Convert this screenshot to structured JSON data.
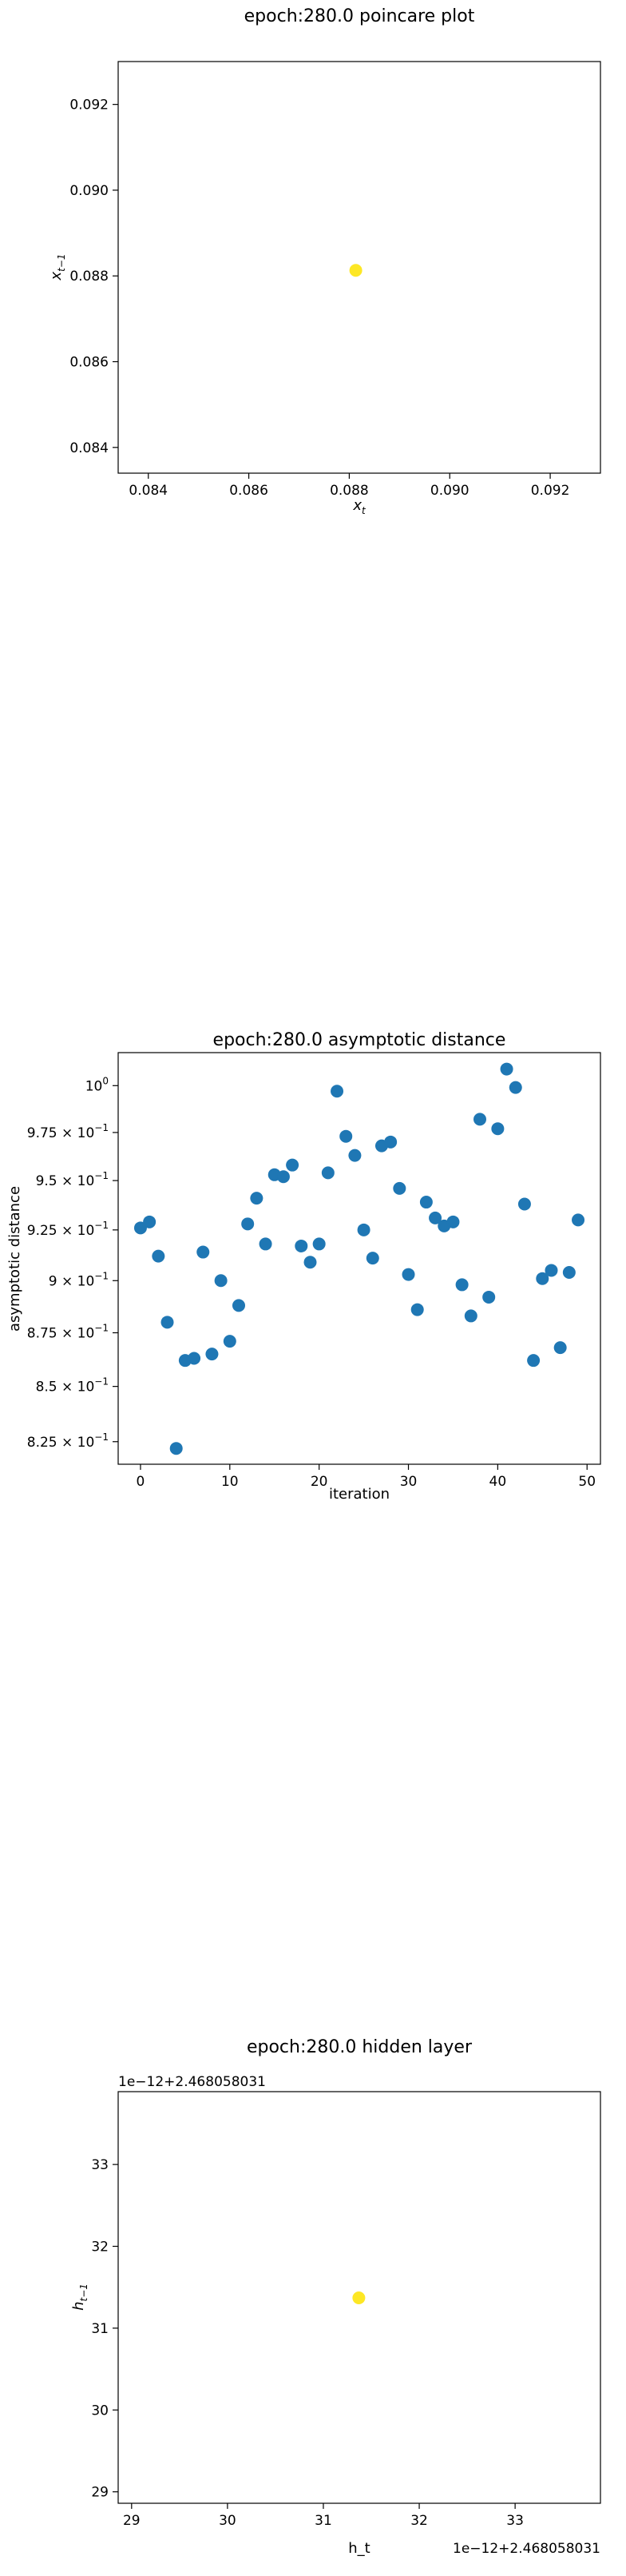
{
  "chart_data": [
    {
      "type": "scatter",
      "title": "epoch:280.0 poincare plot",
      "xlabel": "x_t",
      "ylabel": "x_{t-1}",
      "xlim": [
        0.0834,
        0.093
      ],
      "ylim": [
        0.0834,
        0.093
      ],
      "xticks": [
        0.084,
        0.086,
        0.088,
        0.09,
        0.092
      ],
      "xtick_labels": [
        "0.084",
        "0.086",
        "0.088",
        "0.090",
        "0.092"
      ],
      "yticks": [
        0.084,
        0.086,
        0.088,
        0.09,
        0.092
      ],
      "ytick_labels": [
        "0.084",
        "0.086",
        "0.088",
        "0.090",
        "0.092"
      ],
      "grid": false,
      "marker_color": "#fde725",
      "points": [
        {
          "x": 0.08813,
          "y": 0.08813
        }
      ]
    },
    {
      "type": "scatter",
      "title": "epoch:280.0 asymptotic distance",
      "xlabel": "iteration",
      "ylabel": "asymptotic distance",
      "xlim": [
        -2.5,
        51.5
      ],
      "ylim": [
        0.815,
        1.018
      ],
      "y_scale": "log",
      "xticks": [
        0,
        10,
        20,
        30,
        40,
        50
      ],
      "xtick_labels": [
        "0",
        "10",
        "20",
        "30",
        "40",
        "50"
      ],
      "yticks": [
        0.825,
        0.85,
        0.875,
        0.9,
        0.925,
        0.95,
        0.975,
        1.0
      ],
      "ytick_labels": [
        [
          "8.25 × 10",
          "−1"
        ],
        [
          "8.5 × 10",
          "−1"
        ],
        [
          "8.75 × 10",
          "−1"
        ],
        [
          "9 × 10",
          "−1"
        ],
        [
          "9.25 × 10",
          "−1"
        ],
        [
          "9.5 × 10",
          "−1"
        ],
        [
          "9.75 × 10",
          "−1"
        ],
        [
          "10",
          "0"
        ]
      ],
      "grid": false,
      "marker_color": "#1f77b4",
      "x": [
        0,
        1,
        2,
        3,
        4,
        5,
        6,
        7,
        8,
        9,
        10,
        11,
        12,
        13,
        14,
        15,
        16,
        17,
        18,
        19,
        20,
        21,
        22,
        23,
        24,
        25,
        26,
        27,
        28,
        29,
        30,
        31,
        32,
        33,
        34,
        35,
        36,
        37,
        38,
        39,
        40,
        41,
        42,
        43,
        44,
        45,
        46,
        47,
        48,
        49
      ],
      "y": [
        0.926,
        0.929,
        0.912,
        0.88,
        0.822,
        0.862,
        0.863,
        0.914,
        0.865,
        0.9,
        0.871,
        0.888,
        0.928,
        0.941,
        0.918,
        0.953,
        0.952,
        0.958,
        0.917,
        0.909,
        0.918,
        0.954,
        0.997,
        0.973,
        0.963,
        0.925,
        0.911,
        0.968,
        0.97,
        0.946,
        0.903,
        0.886,
        0.939,
        0.931,
        0.927,
        0.929,
        0.898,
        0.883,
        0.982,
        0.892,
        0.977,
        1.009,
        0.999,
        0.938,
        0.862,
        0.901,
        0.905,
        0.868,
        0.904,
        0.93
      ]
    },
    {
      "type": "scatter",
      "title": "epoch:280.0 hidden layer",
      "xlabel": "h_t",
      "ylabel": "h_{t-1}",
      "x_offset_label": "1e−12+2.468058031",
      "y_offset_label": "1e−12+2.468058031",
      "xlim": [
        28.86,
        33.89
      ],
      "ylim": [
        28.86,
        33.89
      ],
      "xticks": [
        29,
        30,
        31,
        32,
        33
      ],
      "xtick_labels": [
        "29",
        "30",
        "31",
        "32",
        "33"
      ],
      "yticks": [
        29,
        30,
        31,
        32,
        33
      ],
      "ytick_labels": [
        "29",
        "30",
        "31",
        "32",
        "33"
      ],
      "grid": false,
      "marker_color": "#fde725",
      "points": [
        {
          "x": 31.37,
          "y": 31.37
        }
      ]
    }
  ]
}
